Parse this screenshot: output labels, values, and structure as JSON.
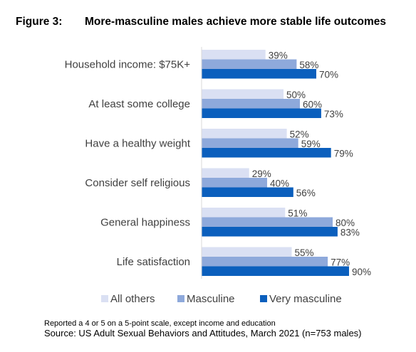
{
  "figure": {
    "number": "Figure 3:",
    "title": "More-masculine males achieve more stable life outcomes"
  },
  "chart_data": {
    "type": "bar",
    "orientation": "horizontal",
    "categories": [
      "Household income: $75K+",
      "At least some college",
      "Have a healthy weight",
      "Consider self religious",
      "General happiness",
      "Life satisfaction"
    ],
    "series": [
      {
        "name": "All others",
        "color": "#dae0f3",
        "values": [
          39,
          50,
          52,
          29,
          51,
          55
        ],
        "labels": [
          "39%",
          "50%",
          "52%",
          "29%",
          "51%",
          "55%"
        ]
      },
      {
        "name": "Masculine",
        "color": "#8ea9db",
        "values": [
          58,
          60,
          59,
          40,
          80,
          77
        ],
        "labels": [
          "58%",
          "60%",
          "59%",
          "40%",
          "80%",
          "77%"
        ]
      },
      {
        "name": "Very masculine",
        "color": "#0b5fbd",
        "values": [
          70,
          73,
          79,
          56,
          83,
          90
        ],
        "labels": [
          "70%",
          "73%",
          "79%",
          "56%",
          "83%",
          "90%"
        ]
      }
    ],
    "xlim": [
      0,
      100
    ],
    "grid": false,
    "legend_position": "bottom"
  },
  "footer": {
    "note": "Reported a 4 or 5 on a 5-point scale, except income and education",
    "source": "Source: US Adult Sexual Behaviors and Attitudes, March 2021 (n=753 males)"
  }
}
